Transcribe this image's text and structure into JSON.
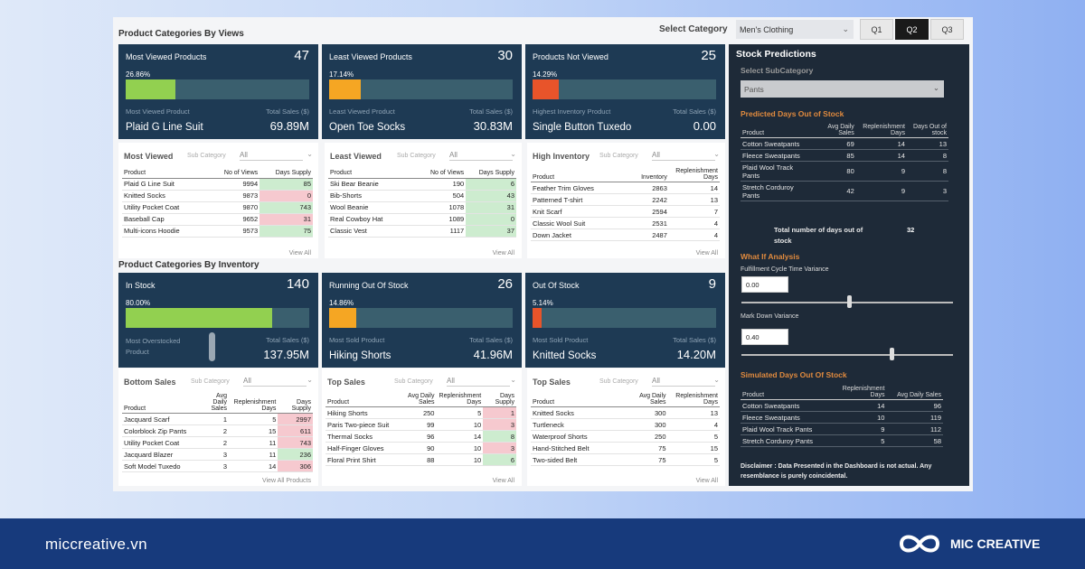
{
  "header": {
    "views_title": "Product Categories By Views",
    "select_label": "Select Category",
    "select_value": "Men's Clothing",
    "quarters": [
      "Q1",
      "Q2",
      "Q3"
    ]
  },
  "view_cards": [
    {
      "title": "Most Viewed Products",
      "count": "47",
      "pct": "26.86%",
      "fill": 0.2686,
      "color": "#92d050",
      "sub_left": "Most Viewed Product",
      "sub_right": "Total Sales ($)",
      "value_left": "Plaid G Line Suit",
      "value_right": "69.89M"
    },
    {
      "title": "Least Viewed Products",
      "count": "30",
      "pct": "17.14%",
      "fill": 0.1714,
      "color": "#f5a623",
      "sub_left": "Least Viewed Product",
      "sub_right": "Total Sales ($)",
      "value_left": "Open Toe Socks",
      "value_right": "30.83M"
    },
    {
      "title": "Products Not Viewed",
      "count": "25",
      "pct": "14.29%",
      "fill": 0.1429,
      "color": "#e8542a",
      "sub_left": "Highest Inventory Product",
      "sub_right": "Total Sales ($)",
      "value_left": "Single Button Tuxedo",
      "value_right": "0.00"
    }
  ],
  "sub_category_label": "Sub Category",
  "all_label": "All",
  "view_all": "View All",
  "view_all_products": "View All Products",
  "most_viewed": {
    "title": "Most Viewed",
    "cols": [
      "Product",
      "No of Views",
      "Days Supply"
    ],
    "rows": [
      [
        "Plaid G Line Suit",
        "9994",
        "85"
      ],
      [
        "Knitted Socks",
        "9873",
        "0"
      ],
      [
        "Utility Pocket Coat",
        "9870",
        "743"
      ],
      [
        "Baseball Cap",
        "9652",
        "31"
      ],
      [
        "Multi-icons Hoodie",
        "9573",
        "75"
      ]
    ],
    "tone": [
      "green",
      "red",
      "green",
      "red",
      "green"
    ]
  },
  "least_viewed": {
    "title": "Least Viewed",
    "cols": [
      "Product",
      "No of Views",
      "Days Supply"
    ],
    "rows": [
      [
        "Ski Bear Beanie",
        "190",
        "6"
      ],
      [
        "Bib-Shorts",
        "504",
        "43"
      ],
      [
        "Wool Beanie",
        "1078",
        "31"
      ],
      [
        "Real Cowboy Hat",
        "1089",
        "0"
      ],
      [
        "Classic Vest",
        "1117",
        "37"
      ]
    ],
    "tone": [
      "green",
      "green",
      "green",
      "green",
      "green"
    ]
  },
  "high_inventory": {
    "title": "High Inventory",
    "cols": [
      "Product",
      "Inventory",
      "Replenishment Days"
    ],
    "rows": [
      [
        "Feather Trim Gloves",
        "2863",
        "14"
      ],
      [
        "Patterned T-shirt",
        "2242",
        "13"
      ],
      [
        "Knit Scarf",
        "2594",
        "7"
      ],
      [
        "Classic Wool Suit",
        "2531",
        "4"
      ],
      [
        "Down Jacket",
        "2487",
        "4"
      ]
    ]
  },
  "inventory_title": "Product Categories By Inventory",
  "inv_cards": [
    {
      "title": "In Stock",
      "count": "140",
      "pct": "80.00%",
      "fill": 0.8,
      "color": "#92d050",
      "sub_left": "Most Overstocked Product",
      "sub_right": "Total Sales ($)",
      "value_left": "",
      "value_right": "137.95M"
    },
    {
      "title": "Running Out Of Stock",
      "count": "26",
      "pct": "14.86%",
      "fill": 0.1486,
      "color": "#f5a623",
      "sub_left": "Most Sold Product",
      "sub_right": "Total Sales ($)",
      "value_left": "Hiking Shorts",
      "value_right": "41.96M"
    },
    {
      "title": "Out Of Stock",
      "count": "9",
      "pct": "5.14%",
      "fill": 0.0514,
      "color": "#e8542a",
      "sub_left": "Most Sold Product",
      "sub_right": "Total Sales ($)",
      "value_left": "Knitted Socks",
      "value_right": "14.20M"
    }
  ],
  "bottom_sales": {
    "title": "Bottom Sales",
    "cols": [
      "Product",
      "Avg Daily Sales",
      "Replenishment Days",
      "Days Supply"
    ],
    "rows": [
      [
        "Jacquard Scarf",
        "1",
        "5",
        "2997"
      ],
      [
        "Colorblock Zip Pants",
        "2",
        "15",
        "611"
      ],
      [
        "Utility Pocket Coat",
        "2",
        "11",
        "743"
      ],
      [
        "Jacquard Blazer",
        "3",
        "11",
        "236"
      ],
      [
        "Soft Model Tuxedo",
        "3",
        "14",
        "306"
      ]
    ],
    "tone": [
      "red",
      "red",
      "red",
      "green",
      "red"
    ]
  },
  "top_sales": {
    "title": "Top Sales",
    "cols": [
      "Product",
      "Avg Daily Sales",
      "Replenishment Days",
      "Days Supply"
    ],
    "rows": [
      [
        "Hiking Shorts",
        "250",
        "5",
        "1"
      ],
      [
        "Paris Two-piece Suit",
        "99",
        "10",
        "3"
      ],
      [
        "Thermal Socks",
        "96",
        "14",
        "8"
      ],
      [
        "Half-Finger Gloves",
        "90",
        "10",
        "3"
      ],
      [
        "Floral Print Shirt",
        "88",
        "10",
        "6"
      ]
    ],
    "tone": [
      "red",
      "red",
      "green",
      "red",
      "green"
    ]
  },
  "top_sales2": {
    "title": "Top Sales",
    "cols": [
      "Product",
      "Avg Daily Sales",
      "Replenishment Days"
    ],
    "rows": [
      [
        "Knitted Socks",
        "300",
        "13"
      ],
      [
        "Turtleneck",
        "300",
        "4"
      ],
      [
        "Waterproof Shorts",
        "250",
        "5"
      ],
      [
        "Hand-Stitched Belt",
        "75",
        "15"
      ],
      [
        "Two-sided Belt",
        "75",
        "5"
      ]
    ]
  },
  "side": {
    "title": "Stock Predictions",
    "subcat_label": "Select SubCategory",
    "subcat_value": "Pants",
    "pred_title": "Predicted Days Out of Stock",
    "pred_cols": [
      "Product",
      "Avg Daily Sales",
      "Replenishment Days",
      "Days Out of stock"
    ],
    "pred_rows": [
      [
        "Cotton Sweatpants",
        "69",
        "14",
        "13"
      ],
      [
        "Fleece Sweatpants",
        "85",
        "14",
        "8"
      ],
      [
        "Plaid Wool Track Pants",
        "80",
        "9",
        "8"
      ],
      [
        "Stretch Corduroy Pants",
        "42",
        "9",
        "3"
      ]
    ],
    "total_label": "Total number of days out of stock",
    "total_value": "32",
    "whatif": "What If Analysis",
    "fulfil_label": "Fulfillment Cycle Time Variance",
    "fulfil_value": "0.00",
    "fulfil_slider": 0.5,
    "markdown_label": "Mark Down Variance",
    "markdown_value": "0.40",
    "markdown_slider": 0.7,
    "sim_title": "Simulated Days Out Of Stock",
    "sim_cols": [
      "Product",
      "Replenishment Days",
      "Avg Daily Sales"
    ],
    "sim_rows": [
      [
        "Cotton Sweatpants",
        "14",
        "96"
      ],
      [
        "Fleece Sweatpants",
        "10",
        "119"
      ],
      [
        "Plaid Wool Track Pants",
        "9",
        "112"
      ],
      [
        "Stretch Corduroy Pants",
        "5",
        "58"
      ]
    ],
    "disclaimer": "Disclaimer : Data Presented in the Dashboard is not actual. Any resemblance is purely coincidental."
  },
  "footer": {
    "site": "miccreative.vn",
    "brand": "MIC CREATIVE"
  }
}
